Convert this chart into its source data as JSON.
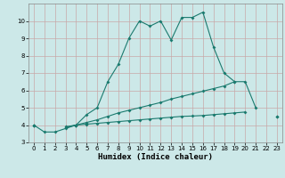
{
  "xlabel": "Humidex (Indice chaleur)",
  "x": [
    0,
    1,
    2,
    3,
    4,
    5,
    6,
    7,
    8,
    9,
    10,
    11,
    12,
    13,
    14,
    15,
    16,
    17,
    18,
    19,
    20,
    21,
    22,
    23
  ],
  "line1": [
    4.0,
    3.6,
    3.6,
    3.8,
    4.0,
    4.6,
    5.0,
    6.5,
    7.5,
    9.0,
    10.0,
    9.7,
    10.0,
    8.9,
    10.2,
    10.2,
    10.5,
    8.5,
    7.0,
    6.5,
    null,
    null,
    null,
    null
  ],
  "line2": [
    4.0,
    null,
    null,
    3.9,
    4.0,
    4.15,
    4.3,
    4.5,
    4.7,
    4.85,
    5.0,
    5.15,
    5.3,
    5.5,
    5.65,
    5.8,
    5.95,
    6.1,
    6.25,
    6.5,
    6.5,
    5.0,
    null,
    4.5
  ],
  "line3": [
    4.0,
    null,
    null,
    3.85,
    4.0,
    4.05,
    4.1,
    4.15,
    4.2,
    4.25,
    4.3,
    4.35,
    4.4,
    4.45,
    4.5,
    4.52,
    4.55,
    4.6,
    4.65,
    4.7,
    4.75,
    null,
    null,
    4.5
  ],
  "line_color": "#1a7a6e",
  "bg_color": "#cce8e8",
  "grid_color_major": "#b8d4d4",
  "grid_color_minor": "#d0e6e6",
  "ylim": [
    3.0,
    11.0
  ],
  "xlim": [
    -0.5,
    23.5
  ],
  "yticks": [
    3,
    4,
    5,
    6,
    7,
    8,
    9,
    10
  ],
  "xticks": [
    0,
    1,
    2,
    3,
    4,
    5,
    6,
    7,
    8,
    9,
    10,
    11,
    12,
    13,
    14,
    15,
    16,
    17,
    18,
    19,
    20,
    21,
    22,
    23
  ],
  "marker_size": 2.0,
  "line_width": 0.8
}
